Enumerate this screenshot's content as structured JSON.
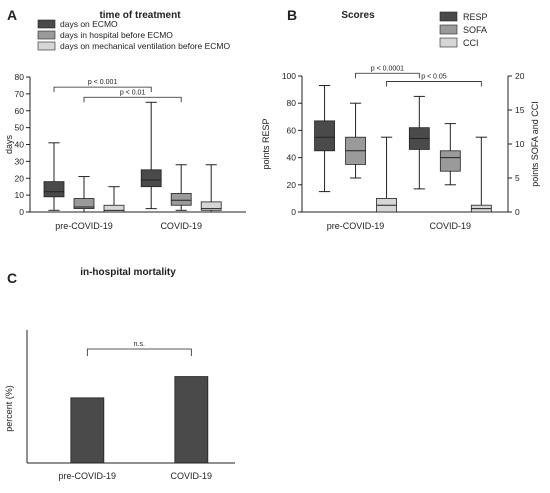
{
  "colors": {
    "dark": "#4a4a4a",
    "mid": "#9a9a9a",
    "light": "#d6d6d6",
    "axis": "#222222"
  },
  "chart_data": [
    {
      "panel_letter": "A",
      "type": "box",
      "title": "time of treatment",
      "ylabel": "days",
      "ylim": [
        0,
        80
      ],
      "yticks": [
        0,
        10,
        20,
        30,
        40,
        50,
        60,
        70,
        80
      ],
      "categories": [
        "pre-COVID-19",
        "COVID-19"
      ],
      "series": [
        {
          "name": "days on ECMO",
          "color": "dark",
          "boxes": [
            {
              "min": 1,
              "q1": 9,
              "median": 12,
              "q3": 18,
              "max": 41
            },
            {
              "min": 2,
              "q1": 15,
              "median": 19,
              "q3": 25,
              "max": 65
            }
          ]
        },
        {
          "name": "days in hospital before ECMO",
          "color": "mid",
          "boxes": [
            {
              "min": 0,
              "q1": 2,
              "median": 3,
              "q3": 8,
              "max": 21
            },
            {
              "min": 1,
              "q1": 4,
              "median": 7,
              "q3": 11,
              "max": 28
            }
          ]
        },
        {
          "name": "days on mechanical ventilation before ECMO",
          "color": "light",
          "boxes": [
            {
              "min": 0,
              "q1": 0,
              "median": 1,
              "q3": 4,
              "max": 15
            },
            {
              "min": 0,
              "q1": 1,
              "median": 2,
              "q3": 6,
              "max": 28
            }
          ]
        }
      ],
      "annotations": [
        {
          "text": "p < 0.001",
          "y": 74
        },
        {
          "text": "p < 0.01",
          "y": 68
        }
      ]
    },
    {
      "panel_letter": "B",
      "type": "box",
      "title": "Scores",
      "ylabel": "points RESP",
      "ylim": [
        0,
        100
      ],
      "yticks": [
        0,
        20,
        40,
        60,
        80,
        100
      ],
      "y2label": "points SOFA and CCI",
      "y2lim": [
        0,
        20
      ],
      "y2ticks": [
        0,
        5,
        10,
        15,
        20
      ],
      "categories": [
        "pre-COVID-19",
        "COVID-19"
      ],
      "series": [
        {
          "name": "RESP",
          "color": "dark",
          "axis": "left",
          "boxes": [
            {
              "min": 15,
              "q1": 45,
              "median": 55,
              "q3": 67,
              "max": 93
            },
            {
              "min": 17,
              "q1": 46,
              "median": 54,
              "q3": 62,
              "max": 85
            }
          ]
        },
        {
          "name": "SOFA",
          "color": "mid",
          "axis": "right",
          "boxes": [
            {
              "min": 5,
              "q1": 7,
              "median": 9,
              "q3": 11,
              "max": 16
            },
            {
              "min": 4,
              "q1": 6,
              "median": 8,
              "q3": 9,
              "max": 13
            }
          ]
        },
        {
          "name": "CCI",
          "color": "light",
          "axis": "right",
          "boxes": [
            {
              "min": 0,
              "q1": 0,
              "median": 1,
              "q3": 2,
              "max": 11
            },
            {
              "min": 0,
              "q1": 0,
              "median": 0.5,
              "q3": 1,
              "max": 11
            }
          ]
        }
      ],
      "annotations": [
        {
          "text": "p < 0.0001",
          "y": 102
        },
        {
          "text": "p < 0.05",
          "y": 96
        }
      ]
    },
    {
      "panel_letter": "C",
      "type": "bar",
      "title": "in-hospital mortality",
      "ylabel": "percent (%)",
      "ylim": [
        0,
        100
      ],
      "categories": [
        "pre-COVID-19",
        "COVID-19"
      ],
      "values": [
        49,
        65
      ],
      "annotation": "n.s."
    }
  ]
}
